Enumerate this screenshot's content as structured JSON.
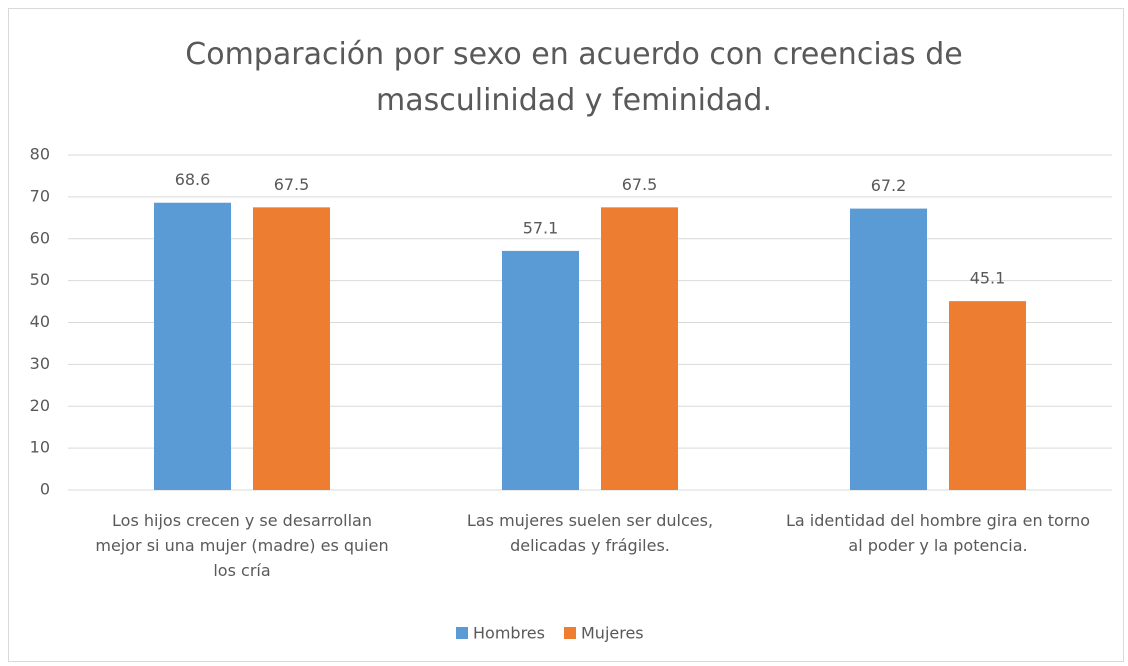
{
  "chart_data": {
    "type": "bar",
    "title": "Comparación por sexo en acuerdo con creencias de masculinidad y feminidad.",
    "categories": [
      "Los hijos crecen y se desarrollan mejor si una mujer (madre) es quien los cría",
      "Las mujeres suelen ser dulces, delicadas y frágiles.",
      "La identidad del hombre gira en torno al poder y la potencia."
    ],
    "series": [
      {
        "name": "Hombres",
        "color": "#5b9bd5",
        "values": [
          68.6,
          57.1,
          67.2
        ]
      },
      {
        "name": "Mujeres",
        "color": "#ed7d31",
        "values": [
          67.5,
          67.5,
          45.1
        ]
      }
    ],
    "ylim": [
      0,
      80
    ],
    "yticks": [
      0,
      10,
      20,
      30,
      40,
      50,
      60,
      70,
      80
    ],
    "grid": true,
    "legend": "bottom"
  }
}
